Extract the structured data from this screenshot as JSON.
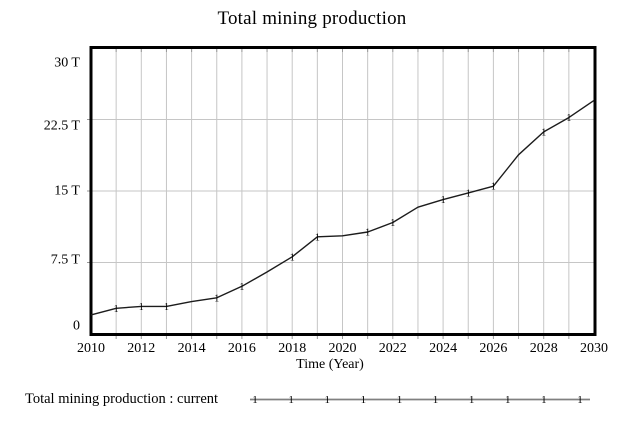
{
  "chart_data": {
    "type": "line",
    "title": "Total mining production",
    "xlabel": "Time (Year)",
    "ylabel": "",
    "unit": "T",
    "xlim": [
      2010,
      2030
    ],
    "ylim": [
      0,
      30
    ],
    "grid": true,
    "x": [
      2010,
      2011,
      2012,
      2013,
      2014,
      2015,
      2016,
      2017,
      2018,
      2019,
      2020,
      2021,
      2022,
      2023,
      2024,
      2025,
      2026,
      2027,
      2028,
      2029,
      2030
    ],
    "series": [
      {
        "name": "Total mining production : current",
        "values": [
          2.0,
          2.7,
          2.9,
          2.9,
          3.4,
          3.8,
          5.0,
          6.5,
          8.1,
          10.2,
          10.3,
          10.7,
          11.7,
          13.3,
          14.1,
          14.8,
          15.5,
          18.8,
          21.2,
          22.7,
          24.5
        ],
        "marker_glyph": "1",
        "marker_x": [
          2011,
          2012,
          2013,
          2015,
          2016,
          2018,
          2019,
          2021,
          2022,
          2024,
          2025,
          2026,
          2028,
          2029
        ]
      }
    ],
    "xticks": [
      2010,
      2012,
      2014,
      2016,
      2018,
      2020,
      2022,
      2024,
      2026,
      2028,
      2030
    ],
    "yticks": [
      {
        "v": 0,
        "label": "0"
      },
      {
        "v": 7.5,
        "label": "7.5 T"
      },
      {
        "v": 15,
        "label": "15 T"
      },
      {
        "v": 22.5,
        "label": "22.5 T"
      },
      {
        "v": 30,
        "label": "30 T"
      }
    ],
    "colors": {
      "line": "#1c1c1c",
      "grid": "#c6c6c6",
      "tick_nub": "#999999",
      "border": "#000000",
      "text": "#000000",
      "legend_line": "#808080"
    },
    "legend_position": "bottom"
  },
  "legend": {
    "label": "Total mining production : current",
    "marker_glyph": "1",
    "marker_count": 10
  }
}
